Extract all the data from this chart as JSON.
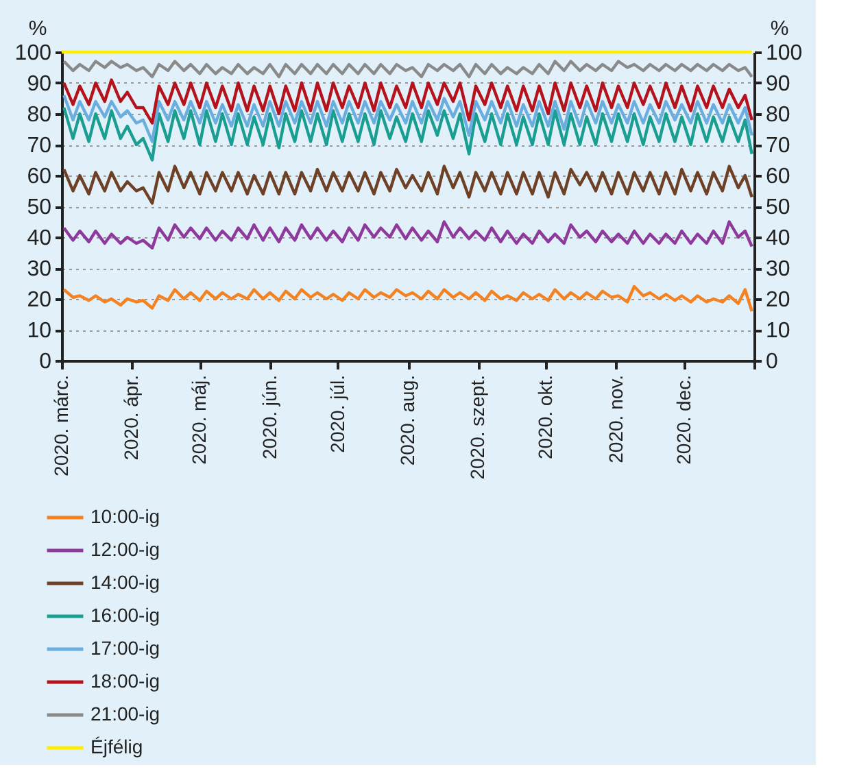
{
  "chart_data": {
    "type": "line",
    "ylabel": "%",
    "y2label": "%",
    "xlim": [
      "2020-03-01",
      "2021-01-01"
    ],
    "xticks": [
      {
        "value": "2020-03-01",
        "label": "2020. márc."
      },
      {
        "value": "2020-04-01",
        "label": "2020. ápr."
      },
      {
        "value": "2020-05-01",
        "label": "2020. máj."
      },
      {
        "value": "2020-06-01",
        "label": "2020. jún."
      },
      {
        "value": "2020-07-01",
        "label": "2020. júl."
      },
      {
        "value": "2020-08-01",
        "label": "2020. aug."
      },
      {
        "value": "2020-09-01",
        "label": "2020. szept."
      },
      {
        "value": "2020-10-01",
        "label": "2020. okt."
      },
      {
        "value": "2020-11-01",
        "label": "2020. nov."
      },
      {
        "value": "2020-12-01",
        "label": "2020. dec."
      },
      {
        "value": "2021-01-01",
        "label": null
      }
    ],
    "ylim": [
      0,
      100
    ],
    "yticks": [
      0,
      10,
      20,
      30,
      40,
      50,
      60,
      70,
      80,
      90,
      100
    ],
    "y2lim": [
      0,
      100
    ],
    "y2ticks": [
      0,
      10,
      20,
      30,
      40,
      50,
      60,
      70,
      80,
      90,
      100
    ],
    "grid": "y",
    "legend": "bottom",
    "marker": "none",
    "line_style": "solid",
    "x": [
      "2020-03-02",
      "2020-03-06",
      "2020-03-09",
      "2020-03-13",
      "2020-03-16",
      "2020-03-20",
      "2020-03-23",
      "2020-03-27",
      "2020-03-30",
      "2020-04-03",
      "2020-04-06",
      "2020-04-10",
      "2020-04-13",
      "2020-04-17",
      "2020-04-20",
      "2020-04-24",
      "2020-04-27",
      "2020-05-01",
      "2020-05-04",
      "2020-05-08",
      "2020-05-11",
      "2020-05-15",
      "2020-05-18",
      "2020-05-22",
      "2020-05-25",
      "2020-05-29",
      "2020-06-01",
      "2020-06-05",
      "2020-06-08",
      "2020-06-12",
      "2020-06-15",
      "2020-06-19",
      "2020-06-22",
      "2020-06-26",
      "2020-06-29",
      "2020-07-03",
      "2020-07-06",
      "2020-07-10",
      "2020-07-13",
      "2020-07-17",
      "2020-07-20",
      "2020-07-24",
      "2020-07-27",
      "2020-07-31",
      "2020-08-03",
      "2020-08-07",
      "2020-08-10",
      "2020-08-14",
      "2020-08-17",
      "2020-08-21",
      "2020-08-24",
      "2020-08-28",
      "2020-08-31",
      "2020-09-04",
      "2020-09-07",
      "2020-09-11",
      "2020-09-14",
      "2020-09-18",
      "2020-09-21",
      "2020-09-25",
      "2020-09-28",
      "2020-10-02",
      "2020-10-05",
      "2020-10-09",
      "2020-10-12",
      "2020-10-16",
      "2020-10-19",
      "2020-10-23",
      "2020-10-26",
      "2020-10-30",
      "2020-11-02",
      "2020-11-06",
      "2020-11-09",
      "2020-11-13",
      "2020-11-16",
      "2020-11-20",
      "2020-11-23",
      "2020-11-27",
      "2020-11-30",
      "2020-12-04",
      "2020-12-07",
      "2020-12-11",
      "2020-12-14",
      "2020-12-18",
      "2020-12-21",
      "2020-12-25",
      "2020-12-28",
      "2020-12-31"
    ],
    "series": [
      {
        "name": "10:00-ig",
        "color": "#f58220",
        "values": [
          23,
          20.5,
          21,
          19.5,
          21,
          19,
          20,
          18,
          20,
          19,
          19.5,
          17,
          21,
          19.5,
          23,
          20,
          22,
          19.5,
          22.5,
          20,
          22,
          20,
          21.5,
          20,
          23,
          20,
          22,
          19.5,
          22.5,
          20,
          23,
          20.5,
          22,
          20,
          21.5,
          19.5,
          22,
          20,
          23,
          20.5,
          22,
          20.5,
          23,
          21,
          22,
          20,
          22.5,
          20,
          23,
          20.5,
          22,
          20,
          22,
          19.5,
          22.5,
          20,
          21,
          19.5,
          22,
          20,
          21.5,
          19.5,
          23,
          20,
          22,
          20,
          22,
          20,
          22.5,
          20.5,
          21,
          19,
          24,
          21,
          22,
          20,
          21.5,
          19.5,
          21,
          19,
          21,
          19,
          20,
          19,
          21,
          18.5,
          23,
          16
        ]
      },
      {
        "name": "12:00-ig",
        "color": "#8e3a9d",
        "values": [
          43,
          39,
          42,
          38.5,
          42,
          38,
          41,
          38,
          40,
          38,
          39,
          36.5,
          43,
          39,
          44,
          40,
          43,
          39.5,
          43,
          39,
          42,
          39,
          43,
          39.5,
          44,
          39,
          43,
          38.5,
          43,
          39,
          44,
          39.5,
          43,
          39,
          42,
          38.5,
          43,
          39,
          44,
          40,
          43,
          40,
          44,
          39.5,
          43,
          39,
          42,
          38.5,
          45,
          40,
          43,
          39.5,
          42,
          39,
          43,
          38.5,
          42,
          38,
          41,
          38,
          42,
          38.5,
          41,
          38,
          44,
          40,
          42,
          38.5,
          42,
          38.5,
          41,
          38,
          42,
          38,
          41,
          38,
          41,
          38,
          42,
          38,
          41,
          38,
          42,
          38,
          45,
          40,
          42,
          37
        ]
      },
      {
        "name": "14:00-ig",
        "color": "#6e4127",
        "values": [
          62,
          55,
          60,
          54,
          61,
          55,
          61,
          55,
          58,
          55,
          56,
          51,
          61,
          55,
          63,
          56,
          61,
          54,
          61,
          55,
          61,
          55,
          61,
          54,
          60,
          54,
          61,
          54,
          61,
          54,
          61,
          55,
          62,
          55,
          61,
          55,
          61,
          55,
          61,
          54,
          61,
          55,
          62,
          56,
          60,
          55,
          61,
          54,
          63,
          56,
          61,
          53,
          61,
          55,
          61,
          54,
          61,
          54,
          61,
          54,
          61,
          53,
          61,
          54,
          62,
          57,
          61,
          55,
          61,
          54,
          61,
          54,
          61,
          55,
          61,
          54,
          61,
          54,
          62,
          55,
          61,
          54,
          61,
          55,
          63,
          56,
          60,
          53
        ]
      },
      {
        "name": "16:00-ig",
        "color": "#1a9e91",
        "values": [
          82,
          72,
          80,
          71,
          80,
          72,
          81,
          72,
          76,
          70,
          72,
          65,
          80,
          71,
          81,
          72,
          81,
          70,
          81,
          71,
          80,
          70,
          80,
          70,
          79,
          70,
          80,
          69,
          80,
          71,
          81,
          71,
          80,
          70,
          81,
          71,
          80,
          71,
          80,
          70,
          81,
          72,
          79,
          71,
          80,
          71,
          81,
          73,
          81,
          72,
          80,
          67,
          80,
          71,
          80,
          70,
          80,
          70,
          79,
          70,
          80,
          70,
          81,
          70,
          80,
          70,
          79,
          70,
          80,
          71,
          80,
          71,
          80,
          70,
          79,
          71,
          80,
          71,
          79,
          70,
          80,
          71,
          79,
          71,
          79,
          71,
          78,
          67
        ]
      },
      {
        "name": "17:00-ig",
        "color": "#6aaee0",
        "values": [
          86,
          78,
          84,
          78,
          84,
          79,
          84,
          79,
          81,
          77,
          78,
          71,
          84,
          78,
          84,
          78,
          84,
          77,
          84,
          77,
          83,
          76,
          83,
          76,
          83,
          76,
          84,
          76,
          84,
          77,
          84,
          77,
          84,
          76,
          84,
          77,
          84,
          77,
          84,
          77,
          84,
          78,
          83,
          77,
          84,
          77,
          84,
          78,
          85,
          79,
          84,
          73,
          84,
          78,
          84,
          77,
          84,
          76,
          83,
          76,
          84,
          76,
          84,
          75,
          84,
          76,
          84,
          77,
          84,
          77,
          83,
          77,
          84,
          77,
          83,
          77,
          84,
          78,
          83,
          77,
          84,
          77,
          83,
          77,
          83,
          77,
          82,
          73
        ]
      },
      {
        "name": "18:00-ig",
        "color": "#b5121b",
        "values": [
          90,
          83,
          89,
          83,
          90,
          84,
          91,
          84,
          87,
          82,
          82,
          77,
          89,
          83,
          90,
          83,
          90,
          82,
          90,
          82,
          89,
          81,
          90,
          81,
          89,
          81,
          89,
          80,
          89,
          81,
          90,
          81,
          90,
          81,
          90,
          82,
          89,
          82,
          90,
          81,
          90,
          82,
          89,
          82,
          90,
          82,
          90,
          83,
          90,
          84,
          90,
          78,
          89,
          83,
          90,
          82,
          89,
          81,
          89,
          81,
          89,
          80,
          90,
          81,
          90,
          82,
          89,
          81,
          90,
          82,
          89,
          82,
          90,
          83,
          89,
          82,
          90,
          82,
          89,
          81,
          89,
          82,
          89,
          82,
          88,
          82,
          86,
          78
        ]
      },
      {
        "name": "21:00-ig",
        "color": "#8a8a8a",
        "values": [
          97,
          94,
          96,
          94,
          97,
          95,
          97,
          95,
          96,
          94,
          95,
          92,
          96,
          94,
          97,
          94,
          96,
          93,
          96,
          93,
          95,
          93,
          96,
          93,
          95,
          93,
          96,
          92,
          96,
          93,
          96,
          93,
          96,
          93,
          96,
          93,
          96,
          93,
          96,
          93,
          96,
          93,
          96,
          94,
          95,
          92,
          96,
          94,
          96,
          94,
          96,
          92,
          96,
          93,
          96,
          93,
          95,
          93,
          95,
          93,
          96,
          93,
          97,
          94,
          97,
          94,
          96,
          94,
          96,
          94,
          97,
          95,
          96,
          94,
          96,
          94,
          96,
          94,
          96,
          94,
          96,
          94,
          96,
          94,
          96,
          94,
          95,
          92
        ]
      },
      {
        "name": "Éjfélig",
        "color": "#ffed00",
        "x": [
          "2020-03-01",
          "2020-12-31"
        ],
        "values": [
          100,
          100
        ]
      }
    ]
  }
}
